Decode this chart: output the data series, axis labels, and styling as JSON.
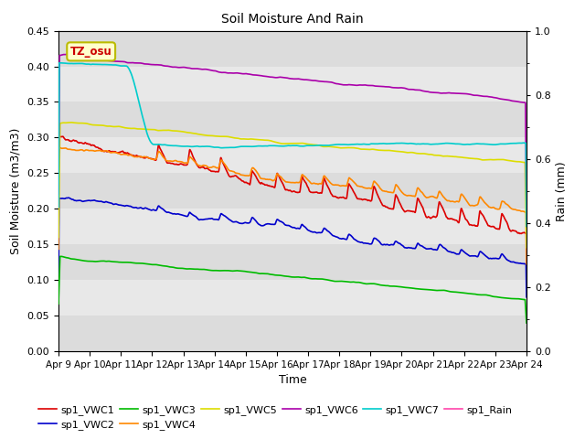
{
  "title": "Soil Moisture And Rain",
  "xlabel": "Time",
  "ylabel_left": "Soil Moisture (m3/m3)",
  "ylabel_right": "Rain (mm)",
  "ylim_left": [
    0.0,
    0.45
  ],
  "ylim_right": [
    0.0,
    1.0
  ],
  "x_tick_labels": [
    "Apr 9",
    "Apr 10",
    "Apr 11",
    "Apr 12",
    "Apr 13",
    "Apr 14",
    "Apr 15",
    "Apr 16",
    "Apr 17",
    "Apr 18",
    "Apr 19",
    "Apr 20",
    "Apr 21",
    "Apr 22",
    "Apr 23",
    "Apr 24"
  ],
  "tz_label": "TZ_osu",
  "band_colors": [
    "#dcdcdc",
    "#e8e8e8"
  ],
  "series": {
    "sp1_VWC1": {
      "color": "#dd0000",
      "lw": 1.2
    },
    "sp1_VWC2": {
      "color": "#0000cc",
      "lw": 1.2
    },
    "sp1_VWC3": {
      "color": "#00bb00",
      "lw": 1.2
    },
    "sp1_VWC4": {
      "color": "#ff8800",
      "lw": 1.2
    },
    "sp1_VWC5": {
      "color": "#dddd00",
      "lw": 1.2
    },
    "sp1_VWC6": {
      "color": "#aa00aa",
      "lw": 1.2
    },
    "sp1_VWC7": {
      "color": "#00cccc",
      "lw": 1.2
    },
    "sp1_Rain": {
      "color": "#ff44aa",
      "lw": 1.2
    }
  }
}
